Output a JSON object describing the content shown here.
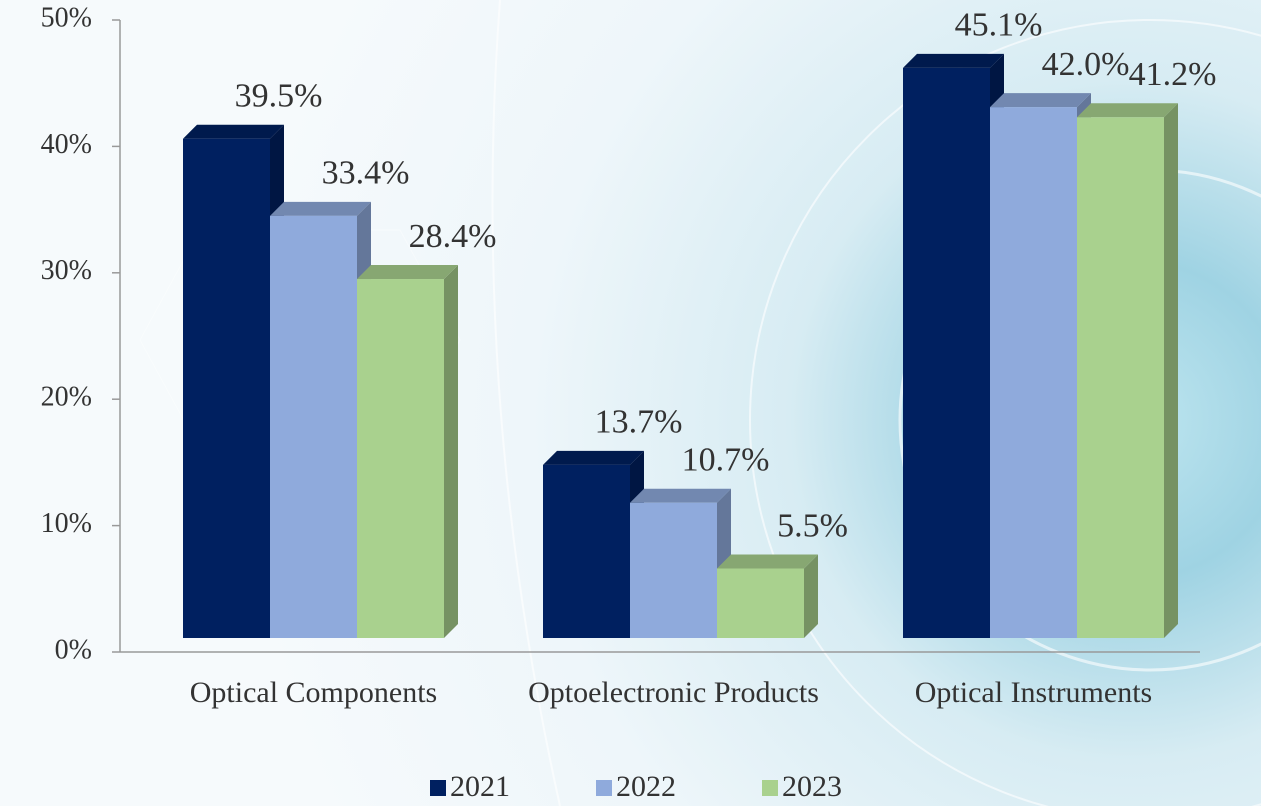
{
  "chart_data": {
    "type": "bar",
    "categories": [
      "Optical Components",
      "Optoelectronic Products",
      "Optical Instruments"
    ],
    "series": [
      {
        "name": "2021",
        "color": "#002060",
        "values": [
          39.5,
          13.7,
          45.1
        ],
        "value_labels": [
          "39.5%",
          "13.7%",
          "45.1%"
        ]
      },
      {
        "name": "2022",
        "color": "#8faadc",
        "values": [
          33.4,
          10.7,
          42.0
        ],
        "value_labels": [
          "33.4%",
          "10.7%",
          "42.0%"
        ]
      },
      {
        "name": "2023",
        "color": "#a9d18e",
        "values": [
          28.4,
          5.5,
          41.2
        ],
        "value_labels": [
          "28.4%",
          "5.5%",
          "41.2%"
        ]
      }
    ],
    "ylim": [
      0,
      50
    ],
    "yticks": [
      {
        "value": 0,
        "label": "0%"
      },
      {
        "value": 10,
        "label": "10%"
      },
      {
        "value": 20,
        "label": "20%"
      },
      {
        "value": 30,
        "label": "30%"
      },
      {
        "value": 40,
        "label": "40%"
      },
      {
        "value": 50,
        "label": "50%"
      }
    ],
    "legend": "bottom"
  }
}
